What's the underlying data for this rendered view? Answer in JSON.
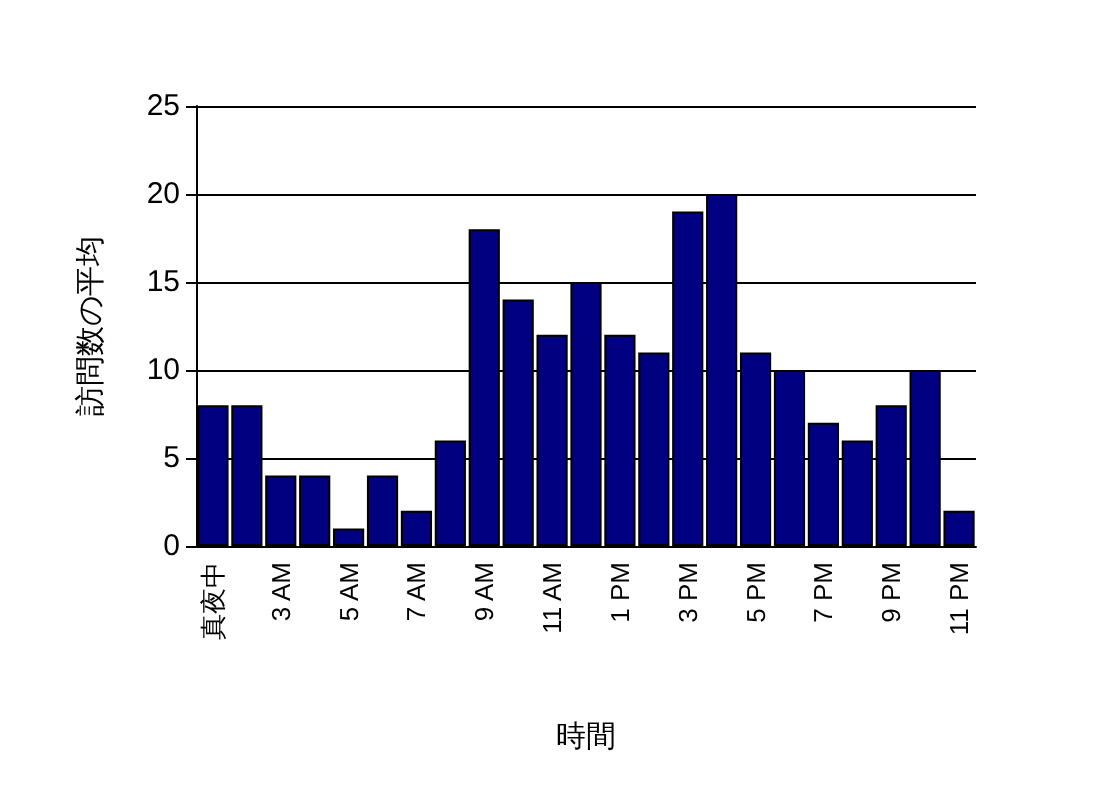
{
  "chart_data": {
    "type": "bar",
    "xlabel": "時間",
    "ylabel": "訪問数の平均",
    "categories": [
      "真夜中",
      null,
      "3 AM",
      null,
      "5 AM",
      null,
      "7 AM",
      null,
      "9 AM",
      null,
      "11 AM",
      null,
      "1 PM",
      null,
      "3 PM",
      null,
      "5 PM",
      null,
      "7 PM",
      null,
      "9 PM",
      null,
      "11 PM"
    ],
    "values": [
      8,
      8,
      4,
      4,
      1,
      4,
      2,
      6,
      18,
      14,
      12,
      15,
      12,
      11,
      19,
      20,
      11,
      10,
      7,
      6,
      8,
      10,
      2
    ],
    "color": "#000080",
    "ylim": [
      0,
      25
    ],
    "yticks": [
      0,
      5,
      10,
      15,
      20,
      25
    ],
    "grid": "y"
  }
}
